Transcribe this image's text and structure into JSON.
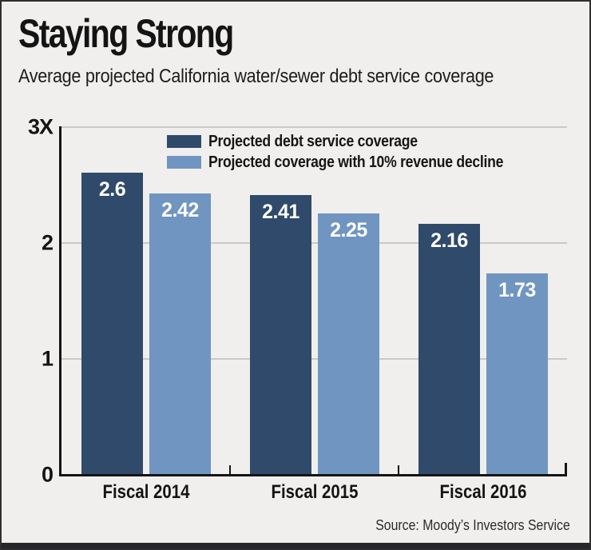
{
  "title": "Staying Strong",
  "subtitle": "Average projected California water/sewer debt service coverage",
  "source": "Source: Moody’s Investors Service",
  "colors": {
    "background": "#f0efee",
    "border": "#2f2f31",
    "axis": "#141414",
    "grid": "#c9c9c9",
    "bar_label_text": "#ffffff",
    "bottom_band": "#26262b",
    "dark_series": "#2f4a6b",
    "light_series": "#7095c0"
  },
  "chart_data": {
    "type": "bar",
    "categories": [
      "Fiscal 2014",
      "Fiscal 2015",
      "Fiscal 2016"
    ],
    "series": [
      {
        "name": "Projected debt service coverage",
        "color": "#2f4a6b",
        "values": [
          2.6,
          2.41,
          2.16
        ],
        "labels": [
          "2.6",
          "2.41",
          "2.16"
        ]
      },
      {
        "name": "Projected coverage with 10% revenue decline",
        "color": "#7095c0",
        "values": [
          2.42,
          2.25,
          1.73
        ],
        "labels": [
          "2.42",
          "2.25",
          "1.73"
        ]
      }
    ],
    "title": "Staying Strong",
    "xlabel": "",
    "ylabel": "",
    "ylim": [
      0,
      3
    ],
    "y_ticks": [
      {
        "value": 3,
        "label": "3X"
      },
      {
        "value": 2,
        "label": "2"
      },
      {
        "value": 1,
        "label": "1"
      },
      {
        "value": 0,
        "label": "0"
      }
    ],
    "grid": true,
    "legend_position": "top-center",
    "bar_labels_inside": true
  }
}
